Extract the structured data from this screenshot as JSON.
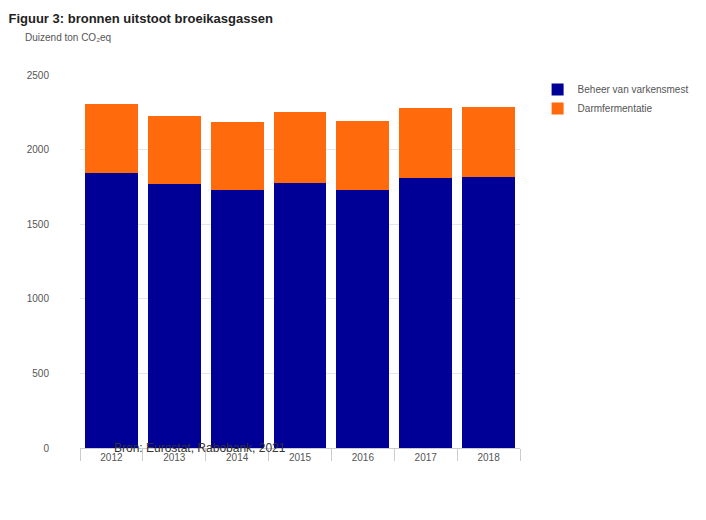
{
  "chart_data": {
    "type": "bar",
    "title": "Figuur 3: bronnen uitstoot broeikasgassen",
    "ylabel": "Duizend ton CO₂eq",
    "source": "Bron: Eurostat, Rabobank, 2021",
    "categories": [
      "2012",
      "2013",
      "2014",
      "2015",
      "2016",
      "2017",
      "2018"
    ],
    "series": [
      {
        "name": "Beheer van varkensmest",
        "color": "#000096",
        "values": [
          1843,
          1769,
          1729,
          1776,
          1729,
          1810,
          1816
        ]
      },
      {
        "name": "Darmfermentatie",
        "color": "#ff6a0d",
        "values": [
          462,
          456,
          456,
          476,
          463,
          469,
          469
        ]
      }
    ],
    "stacked": true,
    "ylim": [
      0,
      2500
    ],
    "yticks": [
      0,
      500,
      1000,
      1500,
      2000,
      2500
    ],
    "grid": true,
    "legend": "right"
  }
}
